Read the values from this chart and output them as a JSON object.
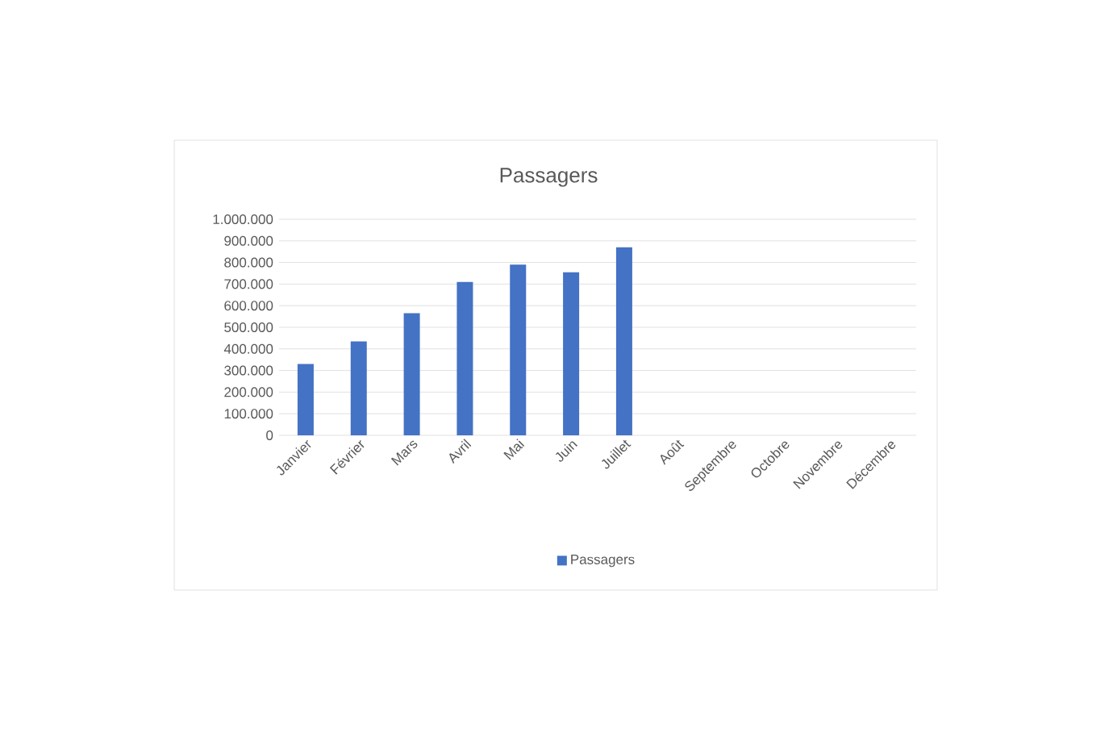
{
  "chart_data": {
    "type": "bar",
    "title": "Passagers",
    "categories": [
      "Janvier",
      "Février",
      "Mars",
      "Avril",
      "Mai",
      "Juin",
      "Juillet",
      "Août",
      "Septembre",
      "Octobre",
      "Novembre",
      "Décembre"
    ],
    "series": [
      {
        "name": "Passagers",
        "color": "#4472c4",
        "values": [
          330000,
          435000,
          565000,
          710000,
          790000,
          755000,
          870000,
          null,
          null,
          null,
          null,
          null
        ]
      }
    ],
    "ylim": [
      0,
      1000000
    ],
    "yticks": [
      {
        "value": 0,
        "label": "0"
      },
      {
        "value": 100000,
        "label": "100.000"
      },
      {
        "value": 200000,
        "label": "200.000"
      },
      {
        "value": 300000,
        "label": "300.000"
      },
      {
        "value": 400000,
        "label": "400.000"
      },
      {
        "value": 500000,
        "label": "500.000"
      },
      {
        "value": 600000,
        "label": "600.000"
      },
      {
        "value": 700000,
        "label": "700.000"
      },
      {
        "value": 800000,
        "label": "800.000"
      },
      {
        "value": 900000,
        "label": "900.000"
      },
      {
        "value": 1000000,
        "label": "1.000.000"
      }
    ],
    "grid": "y",
    "legend": "bottom"
  }
}
